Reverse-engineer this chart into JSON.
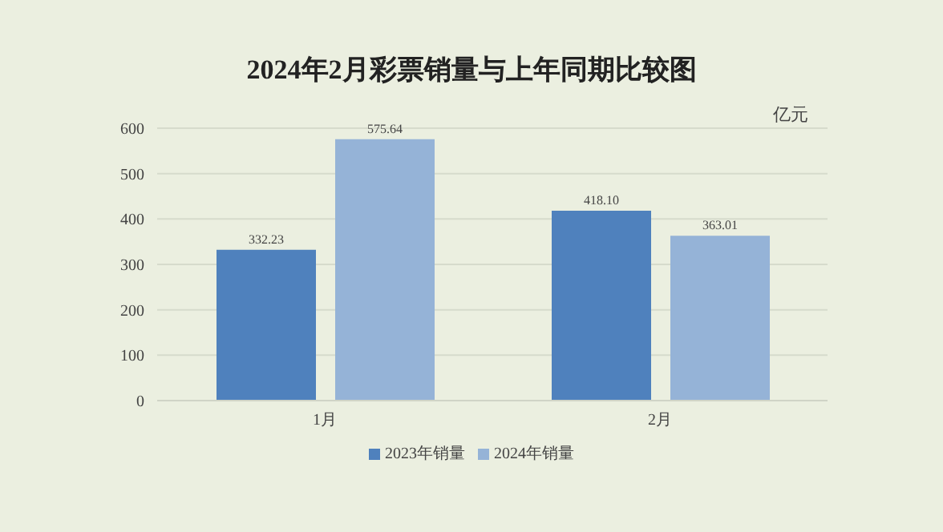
{
  "chart_data": {
    "type": "bar",
    "title": "2024年2月彩票销量与上年同期比较图",
    "ylabel": "亿元",
    "categories": [
      "1月",
      "2月"
    ],
    "series": [
      {
        "name": "2023年销量",
        "color": "#4f81bd",
        "values": [
          332.23,
          418.1
        ]
      },
      {
        "name": "2024年销量",
        "color": "#95b3d7",
        "values": [
          575.64,
          363.01
        ]
      }
    ],
    "value_labels": [
      [
        "332.23",
        "418.10"
      ],
      [
        "575.64",
        "363.01"
      ]
    ],
    "ylim": [
      0,
      600
    ],
    "yticks": [
      0,
      100,
      200,
      300,
      400,
      500,
      600
    ],
    "grid": "y",
    "legend": "bottom"
  }
}
